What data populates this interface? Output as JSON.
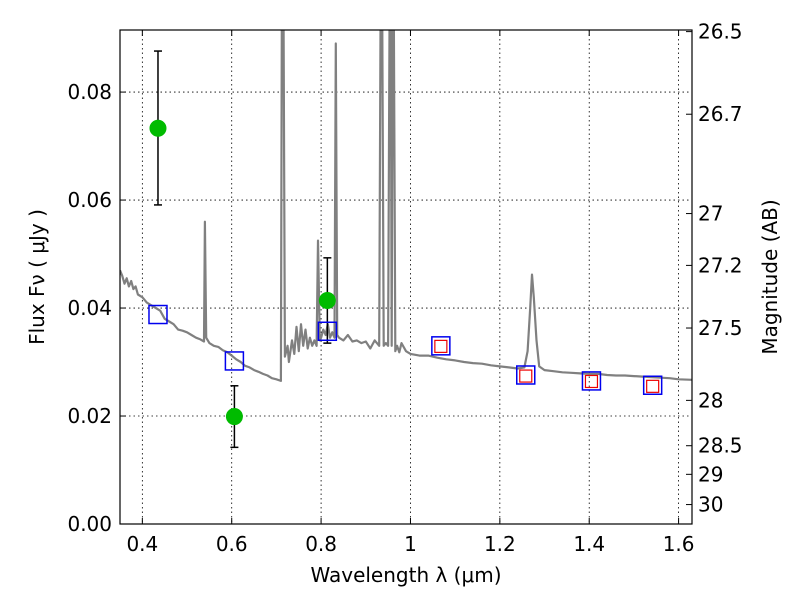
{
  "chart_data": {
    "type": "scatter",
    "xlabel": "Wavelength  λ (μm)",
    "ylabel": "Flux  Fν  ( μJy )",
    "ylabel_right": "Magnitude (AB)",
    "xlim": [
      0.35,
      1.63
    ],
    "ylim": [
      0.0,
      0.0915
    ],
    "grid": true,
    "x_ticks": [
      0.4,
      0.6,
      0.8,
      1.0,
      1.2,
      1.4,
      1.6
    ],
    "x_tick_labels": [
      "0.4",
      "0.6",
      "0.8",
      "1",
      "1.2",
      "1.4",
      "1.6"
    ],
    "y_ticks": [
      0.0,
      0.02,
      0.04,
      0.06,
      0.08
    ],
    "y_tick_labels": [
      "0.00",
      "0.02",
      "0.04",
      "0.06",
      "0.08"
    ],
    "right_ticks": [
      {
        "label": "26.5",
        "flux": 0.0912
      },
      {
        "label": "26.7",
        "flux": 0.0759
      },
      {
        "label": "27",
        "flux": 0.0575
      },
      {
        "label": "27.2",
        "flux": 0.0479
      },
      {
        "label": "27.5",
        "flux": 0.0363
      },
      {
        "label": "28",
        "flux": 0.0229
      },
      {
        "label": "28.5",
        "flux": 0.0145
      },
      {
        "label": "29",
        "flux": 0.0092
      },
      {
        "label": "30",
        "flux": 0.0036
      }
    ],
    "observed": {
      "color": "#00bb00",
      "points": [
        {
          "x": 0.435,
          "y": 0.0733,
          "err_lo": 0.0591,
          "err_hi": 0.0876
        },
        {
          "x": 0.606,
          "y": 0.0199,
          "err_lo": 0.0142,
          "err_hi": 0.0256
        },
        {
          "x": 0.814,
          "y": 0.0414,
          "err_lo": 0.0335,
          "err_hi": 0.0493
        }
      ]
    },
    "model_squares": {
      "color": "#0000ee",
      "points": [
        {
          "x": 0.435,
          "y": 0.0388
        },
        {
          "x": 0.606,
          "y": 0.0302
        },
        {
          "x": 0.814,
          "y": 0.0357
        },
        {
          "x": 1.068,
          "y": 0.033
        },
        {
          "x": 1.258,
          "y": 0.0276
        },
        {
          "x": 1.405,
          "y": 0.0265
        },
        {
          "x": 1.542,
          "y": 0.0257
        }
      ]
    },
    "inner_squares": {
      "color": "#ee0000",
      "points": [
        {
          "x": 1.068,
          "y": 0.0329
        },
        {
          "x": 1.258,
          "y": 0.0274
        },
        {
          "x": 1.405,
          "y": 0.0264
        },
        {
          "x": 1.542,
          "y": 0.0255
        }
      ]
    },
    "spectrum": {
      "color": "#808080",
      "points": [
        [
          0.35,
          0.047
        ],
        [
          0.355,
          0.046
        ],
        [
          0.36,
          0.0445
        ],
        [
          0.365,
          0.0455
        ],
        [
          0.37,
          0.044
        ],
        [
          0.375,
          0.045
        ],
        [
          0.38,
          0.0435
        ],
        [
          0.385,
          0.044
        ],
        [
          0.39,
          0.0425
        ],
        [
          0.4,
          0.042
        ],
        [
          0.41,
          0.041
        ],
        [
          0.42,
          0.0405
        ],
        [
          0.43,
          0.04
        ],
        [
          0.44,
          0.0395
        ],
        [
          0.45,
          0.038
        ],
        [
          0.46,
          0.0375
        ],
        [
          0.47,
          0.037
        ],
        [
          0.48,
          0.036
        ],
        [
          0.49,
          0.0358
        ],
        [
          0.5,
          0.0355
        ],
        [
          0.51,
          0.035
        ],
        [
          0.52,
          0.0345
        ],
        [
          0.53,
          0.0342
        ],
        [
          0.538,
          0.0338
        ],
        [
          0.54,
          0.056
        ],
        [
          0.543,
          0.0345
        ],
        [
          0.55,
          0.0335
        ],
        [
          0.56,
          0.033
        ],
        [
          0.57,
          0.0328
        ],
        [
          0.58,
          0.0322
        ],
        [
          0.59,
          0.0318
        ],
        [
          0.6,
          0.0312
        ],
        [
          0.61,
          0.0305
        ],
        [
          0.62,
          0.03
        ],
        [
          0.63,
          0.0293
        ],
        [
          0.64,
          0.029
        ],
        [
          0.65,
          0.0285
        ],
        [
          0.66,
          0.0282
        ],
        [
          0.67,
          0.0278
        ],
        [
          0.68,
          0.0275
        ],
        [
          0.69,
          0.027
        ],
        [
          0.7,
          0.0268
        ],
        [
          0.71,
          0.0265
        ],
        [
          0.712,
          0.0915
        ],
        [
          0.716,
          0.0915
        ],
        [
          0.719,
          0.031
        ],
        [
          0.725,
          0.033
        ],
        [
          0.728,
          0.03
        ],
        [
          0.735,
          0.034
        ],
        [
          0.74,
          0.0315
        ],
        [
          0.745,
          0.0365
        ],
        [
          0.75,
          0.032
        ],
        [
          0.755,
          0.037
        ],
        [
          0.76,
          0.033
        ],
        [
          0.765,
          0.036
        ],
        [
          0.77,
          0.0325
        ],
        [
          0.775,
          0.0345
        ],
        [
          0.78,
          0.033
        ],
        [
          0.785,
          0.034
        ],
        [
          0.79,
          0.033
        ],
        [
          0.793,
          0.0525
        ],
        [
          0.797,
          0.034
        ],
        [
          0.8,
          0.0345
        ],
        [
          0.805,
          0.036
        ],
        [
          0.81,
          0.035
        ],
        [
          0.815,
          0.037
        ],
        [
          0.82,
          0.0345
        ],
        [
          0.825,
          0.0355
        ],
        [
          0.83,
          0.0345
        ],
        [
          0.833,
          0.089
        ],
        [
          0.836,
          0.035
        ],
        [
          0.84,
          0.0345
        ],
        [
          0.85,
          0.034
        ],
        [
          0.86,
          0.035
        ],
        [
          0.87,
          0.0338
        ],
        [
          0.88,
          0.034
        ],
        [
          0.89,
          0.0335
        ],
        [
          0.9,
          0.0338
        ],
        [
          0.91,
          0.0325
        ],
        [
          0.92,
          0.034
        ],
        [
          0.93,
          0.033
        ],
        [
          0.933,
          0.0915
        ],
        [
          0.937,
          0.0915
        ],
        [
          0.94,
          0.033
        ],
        [
          0.945,
          0.0335
        ],
        [
          0.95,
          0.033
        ],
        [
          0.953,
          0.0915
        ],
        [
          0.956,
          0.0915
        ],
        [
          0.958,
          0.033
        ],
        [
          0.96,
          0.0915
        ],
        [
          0.963,
          0.0915
        ],
        [
          0.966,
          0.032
        ],
        [
          0.97,
          0.033
        ],
        [
          0.975,
          0.0318
        ],
        [
          0.98,
          0.0335
        ],
        [
          0.99,
          0.032
        ],
        [
          1.0,
          0.0315
        ],
        [
          1.02,
          0.0312
        ],
        [
          1.04,
          0.0312
        ],
        [
          1.06,
          0.0308
        ],
        [
          1.08,
          0.0305
        ],
        [
          1.1,
          0.0303
        ],
        [
          1.12,
          0.03
        ],
        [
          1.14,
          0.0298
        ],
        [
          1.16,
          0.0297
        ],
        [
          1.18,
          0.0294
        ],
        [
          1.2,
          0.0292
        ],
        [
          1.22,
          0.029
        ],
        [
          1.24,
          0.0288
        ],
        [
          1.255,
          0.029
        ],
        [
          1.262,
          0.032
        ],
        [
          1.268,
          0.04
        ],
        [
          1.272,
          0.0462
        ],
        [
          1.276,
          0.042
        ],
        [
          1.282,
          0.034
        ],
        [
          1.288,
          0.0292
        ],
        [
          1.3,
          0.0285
        ],
        [
          1.32,
          0.0283
        ],
        [
          1.34,
          0.0281
        ],
        [
          1.36,
          0.028
        ],
        [
          1.38,
          0.0279
        ],
        [
          1.4,
          0.0278
        ],
        [
          1.42,
          0.0278
        ],
        [
          1.44,
          0.0276
        ],
        [
          1.46,
          0.0275
        ],
        [
          1.48,
          0.0275
        ],
        [
          1.5,
          0.0274
        ],
        [
          1.52,
          0.0273
        ],
        [
          1.54,
          0.0272
        ],
        [
          1.56,
          0.0271
        ],
        [
          1.58,
          0.027
        ],
        [
          1.6,
          0.0268
        ],
        [
          1.63,
          0.0267
        ]
      ]
    }
  }
}
